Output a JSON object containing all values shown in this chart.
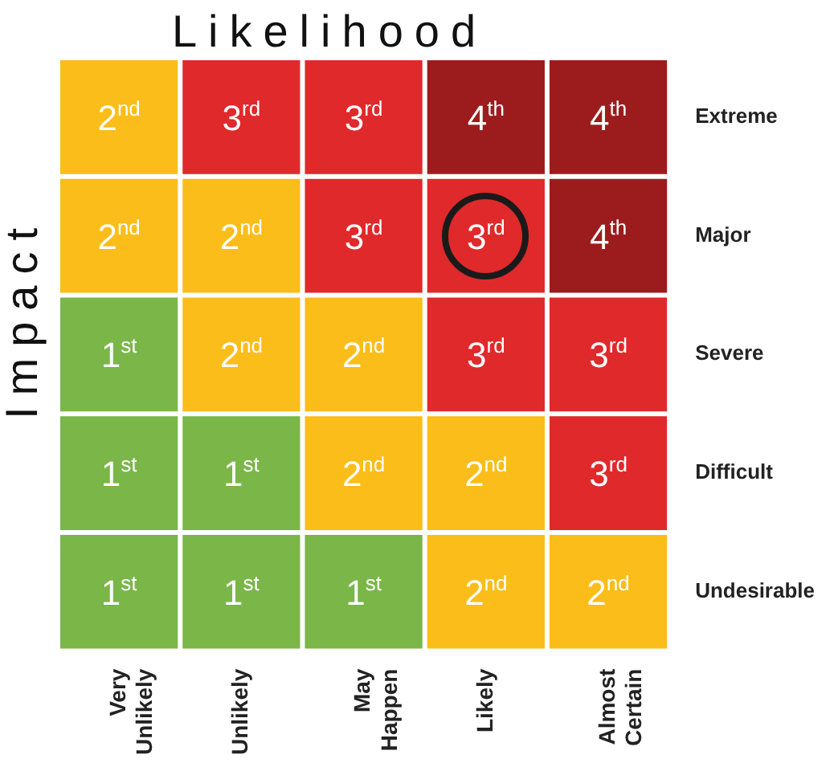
{
  "chart_data": {
    "type": "heatmap",
    "title": "Likelihood",
    "ylabel": "Impact",
    "categories": [
      "Very Unlikely",
      "Unlikely",
      "May Happen",
      "Likely",
      "Almost Certain"
    ],
    "y_categories": [
      "Extreme",
      "Major",
      "Severe",
      "Difficult",
      "Undesirable"
    ],
    "cells": [
      [
        2,
        3,
        3,
        4,
        4
      ],
      [
        2,
        2,
        3,
        3,
        4
      ],
      [
        1,
        2,
        2,
        3,
        3
      ],
      [
        1,
        1,
        2,
        2,
        3
      ],
      [
        1,
        1,
        1,
        2,
        2
      ]
    ],
    "cell_labels": [
      [
        "2$^{nd}$",
        "3$^{rd}$",
        "3$^{rd}$",
        "4$^{th}$",
        "4$^{th}$"
      ],
      [
        "2$^{nd}$",
        "2$^{nd}$",
        "3$^{rd}$",
        "3$^{rd}$",
        "4$^{th}$"
      ],
      [
        "1$^{st}$",
        "2$^{nd}$",
        "2$^{nd}$",
        "3$^{rd}$",
        "3$^{rd}$"
      ],
      [
        "1$^{st}$",
        "1$^{st}$",
        "2$^{nd}$",
        "2$^{nd}$",
        "3$^{rd}$"
      ],
      [
        "1$^{st}$",
        "1$^{st}$",
        "1$^{st}$",
        "2$^{nd}$",
        "2$^{nd}$"
      ]
    ],
    "colors": [
      "#7ab648",
      "#fbbd1a",
      "#e0292b",
      "#9c1c1e"
    ]
  }
}
